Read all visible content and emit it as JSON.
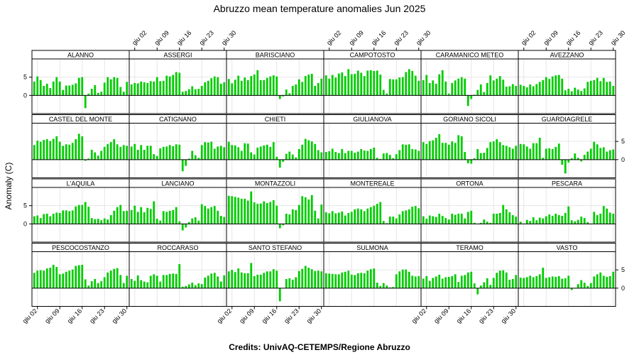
{
  "title": "Abruzzo mean temperature anomalies Jun 2025",
  "credits": "Credits: UnivAQ-CETEMPS/Regione Abruzzo",
  "colors": {
    "bar": "#00cc00",
    "bar_stroke": "#008800",
    "strip": "#ffffff",
    "grid": "#e6e6e6"
  },
  "chart_data": {
    "type": "bar",
    "layout": "lattice 6 columns x 4 rows",
    "ylabel": "Anomaly (C)",
    "yticks": [
      0,
      5
    ],
    "ylim": [
      -5,
      10
    ],
    "x": [
      "giu 01",
      "giu 02",
      "giu 03",
      "giu 04",
      "giu 05",
      "giu 06",
      "giu 07",
      "giu 08",
      "giu 09",
      "giu 10",
      "giu 11",
      "giu 12",
      "giu 13",
      "giu 14",
      "giu 15",
      "giu 16",
      "giu 17",
      "giu 18",
      "giu 19",
      "giu 20",
      "giu 21",
      "giu 22",
      "giu 23",
      "giu 24",
      "giu 25",
      "giu 26",
      "giu 27",
      "giu 28",
      "giu 29",
      "giu 30"
    ],
    "xticks": [
      "giu 02",
      "giu 09",
      "giu 16",
      "giu 23",
      "giu 30"
    ],
    "panels": [
      {
        "name": "ALANNO",
        "values": [
          3.8,
          5.2,
          4.2,
          2.6,
          3.2,
          2.0,
          3.8,
          5.0,
          3.8,
          1.5,
          2.7,
          2.7,
          2.9,
          3.3,
          4.8,
          5.0,
          -3.5,
          0.5,
          1.8,
          2.8,
          0.7,
          1.0,
          3.5,
          5.0,
          4.4,
          5.0,
          4.8,
          2.3,
          1.0,
          3.7
        ]
      },
      {
        "name": "ASSERGI",
        "values": [
          3.0,
          3.4,
          3.3,
          3.8,
          3.6,
          3.4,
          3.9,
          3.8,
          5.0,
          3.9,
          4.0,
          5.4,
          5.2,
          5.6,
          6.4,
          6.2,
          1.0,
          1.2,
          1.7,
          2.5,
          1.7,
          1.8,
          2.6,
          3.6,
          4.0,
          4.7,
          5.2,
          5.0,
          3.2,
          3.6
        ]
      },
      {
        "name": "BARISCIANO",
        "values": [
          4.5,
          3.3,
          4.3,
          5.4,
          4.0,
          4.9,
          4.2,
          5.3,
          5.7,
          6.9,
          4.2,
          4.2,
          4.8,
          5.2,
          5.5,
          5.2,
          -1.0,
          -0.3,
          1.6,
          0.6,
          2.6,
          3.0,
          4.4,
          3.7,
          5.3,
          5.7,
          5.9,
          2.6,
          3.4,
          4.6
        ]
      },
      {
        "name": "CAMPOTOSTO",
        "values": [
          5.5,
          4.6,
          5.6,
          4.9,
          6.0,
          6.3,
          5.3,
          7.2,
          5.8,
          5.9,
          6.8,
          6.2,
          5.3,
          6.8,
          6.9,
          6.7,
          6.8,
          5.7,
          1.5,
          0.5,
          4.5,
          4.4,
          4.4,
          4.9,
          5.0,
          6.4,
          7.2,
          6.7,
          5.4,
          4.0
        ]
      },
      {
        "name": "CARAMANICO METEO",
        "values": [
          4.2,
          5.6,
          3.4,
          4.1,
          3.2,
          5.8,
          6.9,
          3.8,
          0.5,
          3.4,
          4.1,
          4.6,
          5.0,
          4.6,
          -2.9,
          -1.0,
          0.2,
          1.5,
          3.0,
          0.9,
          3.4,
          5.5,
          4.1,
          4.6,
          5.3,
          4.3,
          2.4,
          2.5,
          3.1,
          2.6
        ]
      },
      {
        "name": "AVEZZANO",
        "values": [
          2.9,
          2.6,
          2.2,
          3.0,
          2.5,
          3.1,
          3.7,
          4.2,
          5.0,
          4.5,
          5.2,
          5.5,
          5.6,
          4.6,
          1.4,
          1.8,
          1.1,
          2.1,
          1.6,
          1.2,
          1.9,
          3.7,
          4.0,
          4.2,
          4.8,
          3.9,
          4.8,
          3.7,
          3.8,
          2.6
        ]
      },
      {
        "name": "CASTEL DEL MONTE",
        "values": [
          4.0,
          5.2,
          4.9,
          5.4,
          5.6,
          5.1,
          5.7,
          6.4,
          4.9,
          3.8,
          4.2,
          4.1,
          4.6,
          5.6,
          7.1,
          6.4,
          -0.3,
          0.3,
          2.7,
          2.0,
          1.1,
          2.4,
          3.5,
          4.3,
          4.8,
          5.6,
          4.2,
          3.5,
          4.0,
          3.8
        ]
      },
      {
        "name": "CATIGNANO",
        "values": [
          3.6,
          4.3,
          2.7,
          4.0,
          2.7,
          3.8,
          3.8,
          1.5,
          1.0,
          3.1,
          3.5,
          3.6,
          4.0,
          3.7,
          4.2,
          4.1,
          -3.2,
          -1.7,
          0.3,
          2.4,
          1.2,
          0.5,
          4.0,
          4.8,
          4.7,
          4.9,
          3.0,
          3.6,
          3.8,
          3.4
        ]
      },
      {
        "name": "CHIETI",
        "values": [
          4.9,
          4.0,
          3.9,
          3.4,
          2.4,
          4.5,
          4.4,
          2.0,
          1.4,
          3.3,
          3.6,
          3.9,
          4.1,
          3.5,
          4.8,
          0.8,
          -2.2,
          -0.6,
          1.6,
          2.2,
          1.4,
          0.6,
          2.9,
          4.1,
          5.7,
          5.3,
          5.0,
          4.3,
          2.6,
          2.0
        ]
      },
      {
        "name": "GIULIANOVA",
        "values": [
          2.1,
          2.3,
          3.0,
          2.1,
          1.8,
          2.9,
          1.8,
          2.4,
          2.4,
          1.9,
          2.2,
          2.9,
          2.5,
          2.4,
          2.9,
          3.3,
          0.5,
          0.2,
          1.7,
          1.8,
          1.3,
          0.4,
          1.5,
          2.6,
          4.2,
          4.1,
          4.2,
          2.9,
          2.8,
          2.4
        ]
      },
      {
        "name": "GORIANO SICOLI",
        "values": [
          4.8,
          4.3,
          5.1,
          5.3,
          6.0,
          7.0,
          4.6,
          4.6,
          4.1,
          5.0,
          4.6,
          6.7,
          6.4,
          2.1,
          -1.0,
          -1.1,
          0.4,
          2.9,
          1.8,
          1.9,
          3.2,
          4.8,
          5.0,
          5.6,
          4.8,
          4.0,
          3.8,
          3.4,
          3.0,
          3.8
        ]
      },
      {
        "name": "GUARDIAGRELE",
        "values": [
          4.3,
          4.2,
          3.6,
          3.0,
          4.5,
          4.5,
          6.0,
          0.5,
          3.0,
          3.1,
          2.9,
          3.5,
          4.4,
          -1.4,
          -3.8,
          -0.8,
          0.4,
          1.7,
          0.5,
          -0.5,
          1.3,
          2.2,
          3.0,
          4.9,
          4.2,
          3.2,
          3.4,
          2.2,
          2.6,
          2.8
        ]
      },
      {
        "name": "L'AQUILA",
        "values": [
          2.1,
          2.3,
          1.6,
          2.7,
          2.8,
          2.1,
          2.8,
          3.1,
          3.0,
          3.7,
          3.7,
          3.5,
          3.7,
          4.8,
          5.2,
          5.2,
          6.0,
          4.7,
          1.6,
          1.3,
          1.4,
          1.0,
          1.5,
          1.2,
          2.4,
          3.6,
          4.6,
          5.2,
          3.5,
          3.6
        ]
      },
      {
        "name": "LANCIANO",
        "values": [
          3.8,
          5.0,
          3.3,
          4.6,
          3.2,
          4.4,
          4.1,
          6.2,
          1.4,
          0.9,
          3.5,
          3.3,
          3.6,
          3.8,
          4.6,
          0.7,
          -1.8,
          -1.0,
          0.5,
          1.5,
          1.8,
          0.9,
          5.4,
          4.9,
          4.2,
          4.6,
          4.9,
          3.6,
          2.2,
          1.9
        ]
      },
      {
        "name": "MONTAZZOLI",
        "values": [
          7.7,
          7.6,
          7.4,
          7.2,
          6.9,
          6.9,
          6.4,
          8.9,
          5.9,
          5.5,
          5.6,
          6.2,
          5.7,
          6.0,
          6.5,
          5.0,
          -1.2,
          -0.4,
          2.8,
          2.6,
          4.0,
          3.8,
          5.2,
          7.6,
          7.3,
          6.7,
          7.9,
          3.6,
          1.5,
          5.3
        ]
      },
      {
        "name": "MONTEREALE",
        "values": [
          3.2,
          2.9,
          3.5,
          2.9,
          3.1,
          3.4,
          2.3,
          3.0,
          3.3,
          4.0,
          4.2,
          4.0,
          3.5,
          4.2,
          4.6,
          5.0,
          5.5,
          6.0,
          0.8,
          0.2,
          2.0,
          2.0,
          1.5,
          2.6,
          3.5,
          3.7,
          4.0,
          4.7,
          4.9,
          4.3
        ]
      },
      {
        "name": "ORTONA",
        "values": [
          2.1,
          1.4,
          2.3,
          2.1,
          1.9,
          2.8,
          2.2,
          1.6,
          1.2,
          2.8,
          2.5,
          2.8,
          2.8,
          1.5,
          3.3,
          3.6,
          0.3,
          -0.1,
          0.3,
          1.2,
          0.6,
          0.3,
          2.8,
          2.8,
          3.0,
          5.2,
          4.0,
          3.2,
          2.4,
          2.0
        ]
      },
      {
        "name": "PESCARA",
        "values": [
          0.6,
          0.1,
          1.1,
          0.8,
          1.8,
          1.0,
          1.7,
          1.5,
          2.1,
          2.6,
          2.2,
          2.8,
          2.4,
          2.2,
          3.0,
          4.8,
          1.0,
          0.7,
          1.1,
          2.0,
          1.6,
          0.5,
          -0.1,
          3.3,
          2.4,
          2.8,
          4.9,
          4.2,
          3.1,
          2.8
        ]
      },
      {
        "name": "PESCOCOSTANZO",
        "values": [
          4.2,
          4.8,
          4.9,
          4.8,
          5.4,
          5.6,
          6.4,
          5.8,
          3.8,
          4.0,
          4.5,
          4.8,
          5.1,
          6.1,
          6.3,
          6.4,
          2.4,
          0.7,
          1.9,
          2.5,
          1.4,
          1.9,
          3.0,
          4.3,
          4.8,
          5.3,
          5.5,
          3.6,
          1.4,
          3.4
        ]
      },
      {
        "name": "ROCCARASO",
        "values": [
          2.5,
          2.0,
          3.5,
          2.2,
          1.8,
          1.6,
          3.4,
          3.8,
          3.4,
          1.8,
          3.6,
          3.6,
          3.9,
          4.0,
          3.9,
          6.6,
          0.4,
          0.6,
          1.0,
          1.5,
          0.8,
          1.3,
          1.1,
          2.9,
          3.4,
          4.0,
          4.2,
          3.2,
          1.8,
          3.5
        ]
      },
      {
        "name": "SANTO STEFANO",
        "values": [
          4.6,
          5.0,
          4.4,
          5.4,
          4.3,
          4.1,
          4.1,
          6.9,
          3.3,
          3.7,
          3.7,
          4.2,
          4.6,
          4.6,
          5.2,
          4.8,
          -3.6,
          -0.1,
          2.5,
          2.7,
          2.3,
          3.0,
          4.7,
          5.3,
          6.1,
          5.6,
          5.2,
          4.7,
          4.8,
          4.6
        ]
      },
      {
        "name": "SULMONA",
        "values": [
          4.1,
          4.0,
          3.9,
          3.8,
          3.8,
          4.3,
          4.5,
          4.8,
          3.7,
          3.6,
          4.1,
          4.2,
          4.1,
          4.8,
          5.2,
          5.4,
          1.5,
          0.6,
          1.4,
          0.7,
          0.2,
          0.3,
          3.8,
          4.6,
          5.1,
          5.1,
          4.5,
          3.4,
          3.2,
          3.3
        ]
      },
      {
        "name": "TERAMO",
        "values": [
          2.6,
          3.3,
          2.0,
          2.8,
          3.2,
          3.7,
          2.6,
          3.0,
          3.1,
          3.3,
          3.8,
          1.7,
          3.4,
          3.6,
          4.3,
          4.5,
          1.3,
          -1.7,
          0.7,
          1.6,
          2.7,
          0.9,
          2.8,
          4.2,
          4.8,
          4.9,
          4.3,
          2.3,
          2.5,
          3.6
        ]
      },
      {
        "name": "VASTO",
        "values": [
          2.9,
          2.8,
          3.0,
          3.4,
          3.0,
          3.3,
          3.8,
          5.6,
          2.8,
          3.0,
          3.2,
          3.1,
          3.3,
          2.6,
          2.7,
          3.4,
          -0.5,
          -0.1,
          1.1,
          2.2,
          1.5,
          0.6,
          1.4,
          3.2,
          3.8,
          4.3,
          3.4,
          3.1,
          3.3,
          4.5
        ]
      }
    ]
  }
}
